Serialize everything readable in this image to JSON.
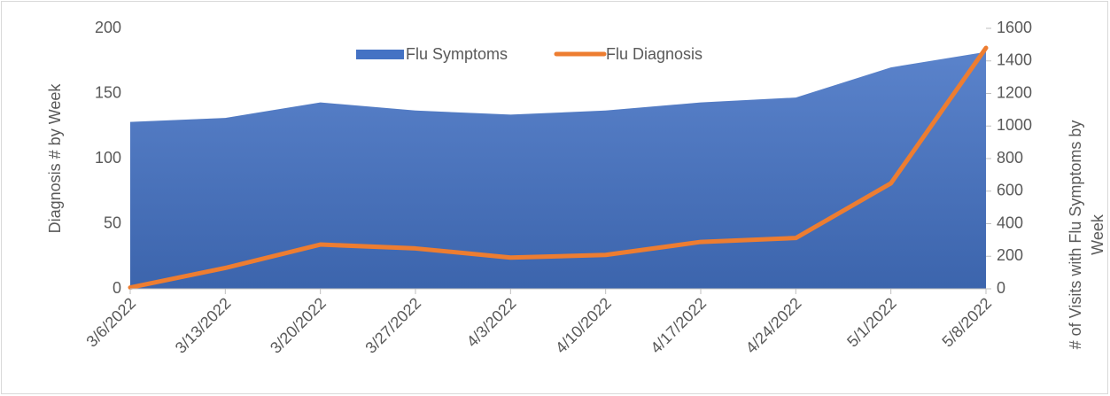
{
  "chart_data": {
    "type": "area-line",
    "categories": [
      "3/6/2022",
      "3/13/2022",
      "3/20/2022",
      "3/27/2022",
      "4/3/2022",
      "4/10/2022",
      "4/17/2022",
      "4/24/2022",
      "5/1/2022",
      "5/8/2022"
    ],
    "series": [
      {
        "name": "Flu Symptoms",
        "type": "area",
        "axis": "y2",
        "color": "#4472c4",
        "values": [
          1025,
          1050,
          1145,
          1095,
          1070,
          1095,
          1145,
          1175,
          1360,
          1455
        ]
      },
      {
        "name": "Flu Diagnosis",
        "type": "line",
        "axis": "y",
        "color": "#ed7d31",
        "values": [
          1,
          16,
          34,
          31,
          24,
          26,
          36,
          39,
          81,
          185
        ]
      }
    ],
    "ylabel": "Diagnosis #  by Week",
    "y2label": [
      "# of  Visits  with Flu Symptoms by",
      "Week"
    ],
    "ylim": [
      0,
      200
    ],
    "yticks": [
      0,
      50,
      100,
      150,
      200
    ],
    "y2lim": [
      0,
      1600
    ],
    "y2ticks": [
      0,
      200,
      400,
      600,
      800,
      1000,
      1200,
      1400,
      1600
    ],
    "legend": "top"
  }
}
